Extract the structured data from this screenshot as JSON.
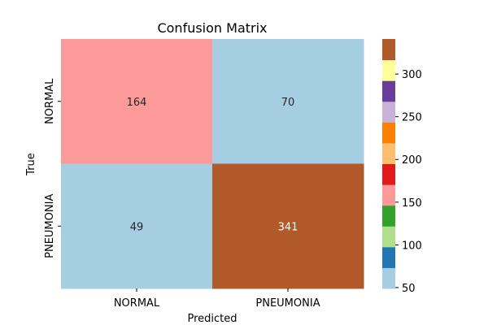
{
  "chart_data": {
    "type": "heatmap",
    "title": "Confusion Matrix",
    "xlabel": "Predicted",
    "ylabel": "True",
    "x_categories": [
      "NORMAL",
      "PNEUMONIA"
    ],
    "y_categories": [
      "NORMAL",
      "PNEUMONIA"
    ],
    "values": [
      [
        164,
        70
      ],
      [
        49,
        341
      ]
    ],
    "colormap": "Paired",
    "colorbar": {
      "range": [
        49,
        341
      ],
      "ticks": [
        50,
        100,
        150,
        200,
        250,
        300
      ],
      "colors": [
        "#a6cee3",
        "#1f78b4",
        "#b2df8a",
        "#33a02c",
        "#fb9a99",
        "#e31a1c",
        "#fdbf6f",
        "#ff7f00",
        "#cab2d6",
        "#6a3d9a",
        "#ffff99",
        "#b15928"
      ]
    },
    "annotation_colors": {
      "light": "#262626",
      "dark": "#ffffff"
    }
  }
}
